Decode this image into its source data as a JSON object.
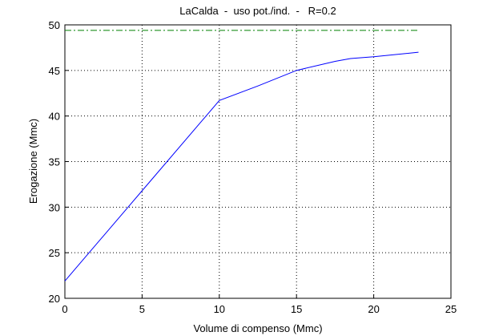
{
  "chart_data": {
    "type": "line",
    "title": "LaCalda  -  uso pot./ind.  -   R=0.2",
    "xlabel": "Volume di compenso (Mmc)",
    "ylabel": "Erogazione (Mmc)",
    "series": [
      {
        "color": "#0000ff",
        "style": "solid",
        "x": [
          0,
          5,
          10,
          12.5,
          15,
          17.5,
          18.5,
          20,
          22.9
        ],
        "values": [
          21.9,
          31.8,
          41.7,
          43.3,
          45.0,
          46.0,
          46.3,
          46.5,
          47.0
        ]
      },
      {
        "color": "#008000",
        "style": "dashdot",
        "x": [
          0,
          22.9
        ],
        "values": [
          49.4,
          49.4
        ]
      }
    ],
    "xlim": [
      0,
      25
    ],
    "xticks": [
      0,
      5,
      10,
      15,
      20,
      25
    ],
    "ylim": [
      20,
      50
    ],
    "yticks": [
      20,
      25,
      30,
      35,
      40,
      45,
      50
    ],
    "grid": true
  }
}
